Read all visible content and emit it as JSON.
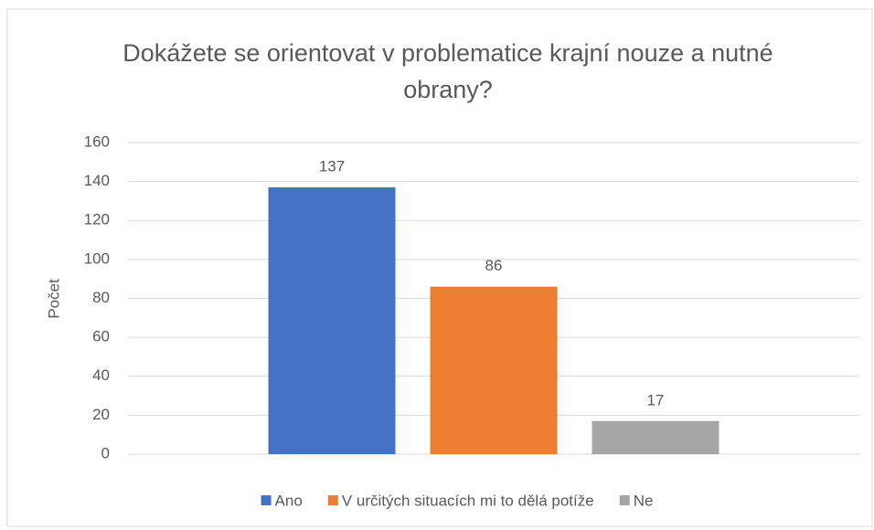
{
  "chart_data": {
    "type": "bar",
    "title": "Dokážete se orientovat v problematice krajní nouze a nutné obrany?",
    "ylabel": "Počet",
    "categories": [
      null
    ],
    "series": [
      {
        "name": "Ano",
        "color": "#4472c4",
        "values": [
          137
        ]
      },
      {
        "name": "V určitých situacích mi to dělá potíže",
        "color": "#ed7d31",
        "values": [
          86
        ]
      },
      {
        "name": "Ne",
        "color": "#a5a5a5",
        "values": [
          17
        ]
      }
    ],
    "ylim": [
      0,
      160
    ],
    "yticks": [
      0,
      20,
      40,
      60,
      80,
      100,
      120,
      140,
      160
    ],
    "grid": true,
    "legend": "bottom"
  }
}
